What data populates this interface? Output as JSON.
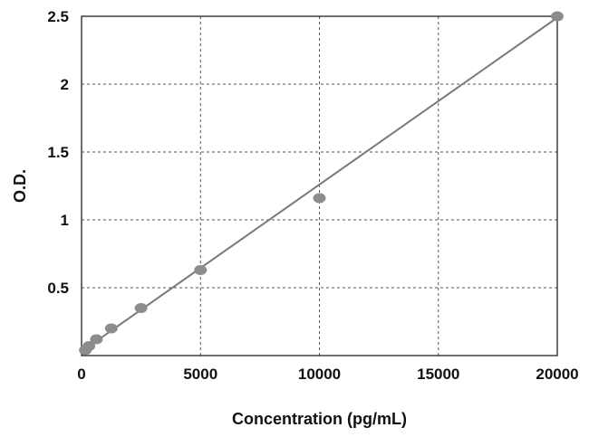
{
  "chart_data": {
    "type": "scatter",
    "title": "",
    "xlabel": "Concentration (pg/mL)",
    "ylabel": "O.D.",
    "xlim": [
      0,
      20000
    ],
    "ylim": [
      0,
      2.5
    ],
    "x_ticks": [
      0,
      5000,
      10000,
      15000,
      20000
    ],
    "y_ticks": [
      0.5,
      1,
      1.5,
      2,
      2.5
    ],
    "x_tick_labels": [
      "0",
      "5000",
      "10000",
      "15000",
      "20000"
    ],
    "y_tick_labels": [
      "0.5",
      "1",
      "1.5",
      "2",
      "2.5"
    ],
    "grid": true,
    "point_color": "#8c8c8c",
    "line_color": "#7a7a7a",
    "series": [
      {
        "x": [
          160,
          310,
          625,
          1250,
          2500,
          5000,
          10000,
          20000
        ],
        "y": [
          0.04,
          0.07,
          0.12,
          0.2,
          0.35,
          0.63,
          1.16,
          2.5
        ]
      }
    ],
    "trendline": {
      "x": [
        0,
        20000
      ],
      "y": [
        0.03,
        2.49
      ]
    }
  }
}
